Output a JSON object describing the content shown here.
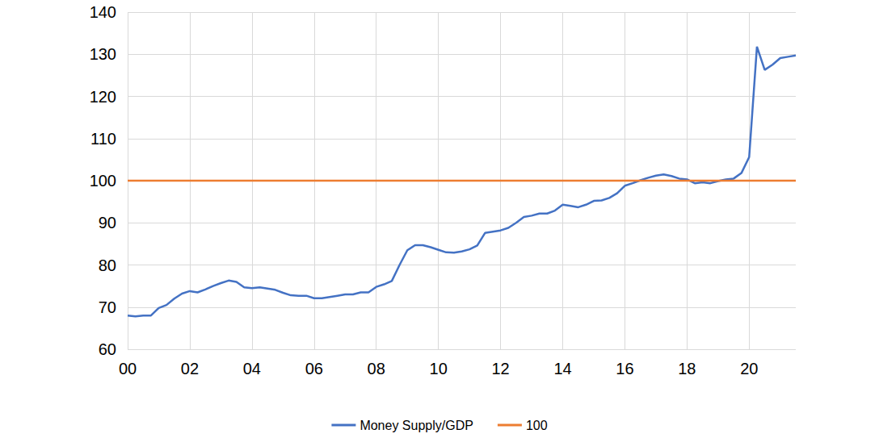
{
  "chart_data": {
    "type": "line",
    "categories": [
      "00",
      null,
      null,
      null,
      null,
      null,
      null,
      null,
      "02",
      null,
      null,
      null,
      null,
      null,
      null,
      null,
      "04",
      null,
      null,
      null,
      null,
      null,
      null,
      null,
      "06",
      null,
      null,
      null,
      null,
      null,
      null,
      null,
      "08",
      null,
      null,
      null,
      null,
      null,
      null,
      null,
      "10",
      null,
      null,
      null,
      null,
      null,
      null,
      null,
      "12",
      null,
      null,
      null,
      null,
      null,
      null,
      null,
      "14",
      null,
      null,
      null,
      null,
      null,
      null,
      null,
      "16",
      null,
      null,
      null,
      null,
      null,
      null,
      null,
      "18",
      null,
      null,
      null,
      null,
      null,
      null,
      null,
      "20",
      null,
      null,
      null,
      null,
      null,
      null
    ],
    "series": [
      {
        "name": "Money Supply/GDP",
        "color": "#4472c4",
        "values": [
          68,
          67.8,
          68,
          68,
          69.8,
          70.5,
          72,
          73.2,
          73.8,
          73.5,
          74.2,
          75,
          75.7,
          76.3,
          76,
          74.7,
          74.5,
          74.7,
          74.4,
          74.1,
          73.4,
          72.8,
          72.7,
          72.7,
          72.1,
          72.1,
          72.4,
          72.7,
          73,
          73,
          73.5,
          73.5,
          74.8,
          75.4,
          76.2,
          80,
          83.5,
          84.7,
          84.7,
          84.2,
          83.6,
          83,
          82.9,
          83.2,
          83.7,
          84.6,
          87.6,
          87.9,
          88.2,
          88.8,
          90,
          91.4,
          91.7,
          92.2,
          92.2,
          92.9,
          94.3,
          94,
          93.7,
          94.3,
          95.2,
          95.3,
          95.9,
          97,
          98.8,
          99.4,
          100.1,
          100.7,
          101.2,
          101.5,
          101.1,
          100.5,
          100.3,
          99.4,
          99.6,
          99.4,
          99.9,
          100.3,
          100.5,
          101.8,
          105.6,
          131.8,
          126.3,
          127.5,
          129.1,
          129.4,
          129.7
        ]
      },
      {
        "name": "100",
        "color": "#ed7d31",
        "values": [
          100,
          100,
          100,
          100,
          100,
          100,
          100,
          100,
          100,
          100,
          100,
          100,
          100,
          100,
          100,
          100,
          100,
          100,
          100,
          100,
          100,
          100,
          100,
          100,
          100,
          100,
          100,
          100,
          100,
          100,
          100,
          100,
          100,
          100,
          100,
          100,
          100,
          100,
          100,
          100,
          100,
          100,
          100,
          100,
          100,
          100,
          100,
          100,
          100,
          100,
          100,
          100,
          100,
          100,
          100,
          100,
          100,
          100,
          100,
          100,
          100,
          100,
          100,
          100,
          100,
          100,
          100,
          100,
          100,
          100,
          100,
          100,
          100,
          100,
          100,
          100,
          100,
          100,
          100,
          100,
          100,
          100,
          100,
          100,
          100,
          100,
          100
        ]
      }
    ],
    "ylim": [
      60,
      140
    ],
    "yticks": [
      60,
      70,
      80,
      90,
      100,
      110,
      120,
      130,
      140
    ],
    "grid": true,
    "legend": "bottom"
  }
}
